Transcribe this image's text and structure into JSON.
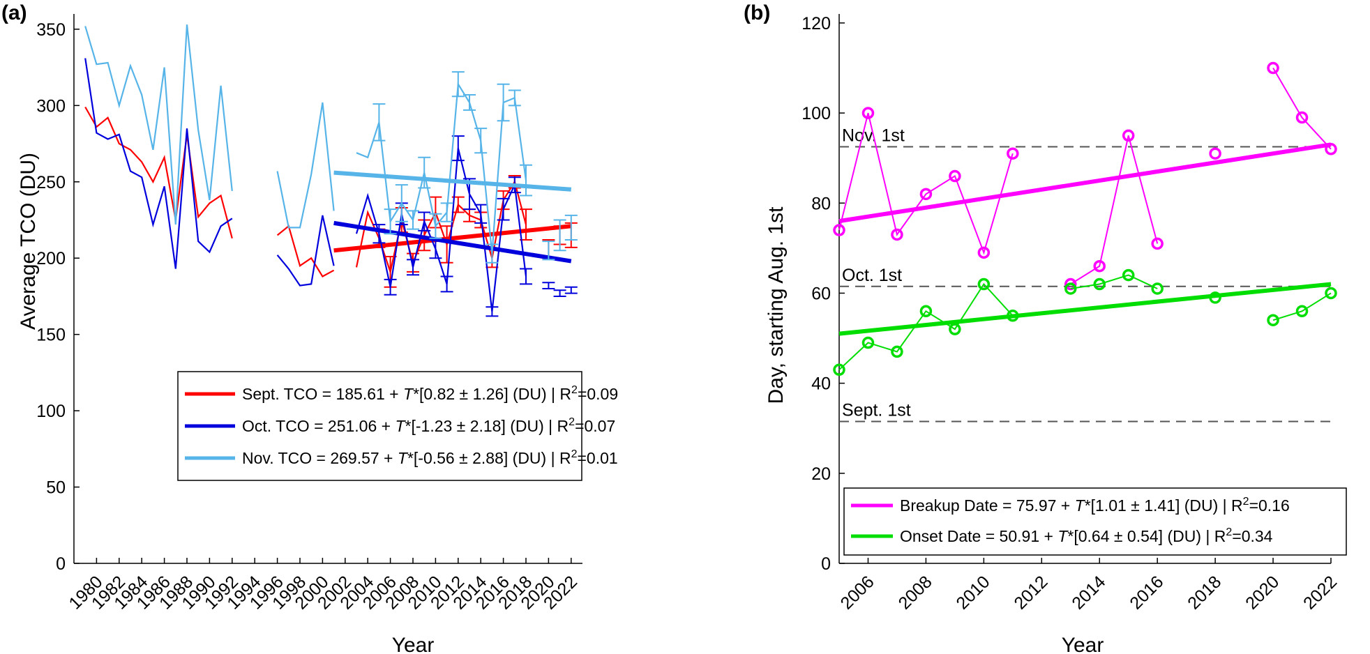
{
  "chart_data": [
    {
      "panel_label": "(a)",
      "type": "line",
      "xlabel": "Year",
      "ylabel": "Average TCO (DU)",
      "xlim": [
        1978,
        2023
      ],
      "ylim": [
        0,
        360
      ],
      "yticks": [
        0,
        50,
        100,
        150,
        200,
        250,
        300,
        350
      ],
      "xticks": [
        1980,
        1982,
        1984,
        1986,
        1988,
        1990,
        1992,
        1994,
        1996,
        1998,
        2000,
        2002,
        2004,
        2006,
        2008,
        2010,
        2012,
        2014,
        2016,
        2018,
        2020,
        2022
      ],
      "colors": {
        "sept": "#ff0000",
        "oct": "#0000dd",
        "nov": "#56b4e9"
      },
      "series": [
        {
          "name": "Sept.",
          "color": "#ff0000",
          "segments": [
            {
              "x": [
                1979,
                1980,
                1981,
                1982,
                1983,
                1984,
                1985,
                1986,
                1987,
                1988,
                1989,
                1990,
                1991,
                1992
              ],
              "y": [
                299,
                286,
                292,
                275,
                271,
                263,
                250,
                266,
                225,
                281,
                227,
                236,
                241,
                213
              ]
            },
            {
              "x": [
                1996,
                1997,
                1998,
                1999,
                2000,
                2001
              ],
              "y": [
                215,
                221,
                195,
                200,
                188,
                192
              ]
            },
            {
              "x": [
                2003,
                2004,
                2005,
                2006,
                2007,
                2008,
                2009,
                2010,
                2011,
                2012,
                2013,
                2014,
                2015,
                2016,
                2017,
                2018
              ],
              "y": [
                194,
                230,
                213,
                191,
                225,
                197,
                215,
                230,
                209,
                235,
                228,
                225,
                200,
                238,
                250,
                222
              ]
            }
          ],
          "errorbars": {
            "x": [
              2005,
              2006,
              2007,
              2008,
              2009,
              2010,
              2011,
              2012,
              2013,
              2014,
              2015,
              2016,
              2017,
              2018,
              2020,
              2021,
              2022
            ],
            "y": [
              213,
              191,
              225,
              197,
              215,
              230,
              209,
              235,
              228,
              225,
              200,
              238,
              250,
              222,
              206,
              215,
              215
            ],
            "err": [
              6,
              10,
              8,
              6,
              10,
              10,
              12,
              5,
              4,
              5,
              6,
              6,
              4,
              10,
              6,
              6,
              8
            ]
          },
          "trend": {
            "x": [
              2001,
              2022
            ],
            "y": [
              205,
              221
            ]
          }
        },
        {
          "name": "Oct.",
          "color": "#0000dd",
          "segments": [
            {
              "x": [
                1979,
                1980,
                1981,
                1982,
                1983,
                1984,
                1985,
                1986,
                1987,
                1988,
                1989,
                1990,
                1991,
                1992
              ],
              "y": [
                331,
                282,
                278,
                281,
                257,
                253,
                222,
                247,
                193,
                285,
                211,
                204,
                221,
                226
              ]
            },
            {
              "x": [
                1996,
                1997,
                1998,
                1999,
                2000,
                2001
              ],
              "y": [
                202,
                193,
                182,
                183,
                228,
                195
              ]
            },
            {
              "x": [
                2003,
                2004,
                2005,
                2006,
                2007,
                2008,
                2009,
                2010,
                2011,
                2012,
                2013,
                2014,
                2015,
                2016,
                2017,
                2018
              ],
              "y": [
                216,
                241,
                216,
                181,
                229,
                194,
                224,
                206,
                183,
                272,
                242,
                229,
                165,
                232,
                248,
                188
              ]
            }
          ],
          "errorbars": {
            "x": [
              2005,
              2006,
              2007,
              2008,
              2009,
              2010,
              2011,
              2012,
              2013,
              2014,
              2015,
              2016,
              2017,
              2018,
              2020,
              2021,
              2022
            ],
            "y": [
              216,
              181,
              229,
              194,
              224,
              206,
              183,
              272,
              242,
              229,
              165,
              232,
              248,
              188,
              182,
              177,
              179
            ],
            "err": [
              6,
              5,
              7,
              5,
              6,
              6,
              5,
              8,
              10,
              6,
              3,
              7,
              5,
              5,
              2,
              2,
              2
            ]
          },
          "trend": {
            "x": [
              2001,
              2022
            ],
            "y": [
              223,
              198
            ]
          }
        },
        {
          "name": "Nov.",
          "color": "#56b4e9",
          "segments": [
            {
              "x": [
                1979,
                1980,
                1981,
                1982,
                1983,
                1984,
                1985,
                1986,
                1987,
                1988,
                1989,
                1990,
                1991,
                1992
              ],
              "y": [
                352,
                327,
                328,
                300,
                326,
                307,
                271,
                325,
                222,
                353,
                284,
                238,
                313,
                244
              ]
            },
            {
              "x": [
                1996,
                1997,
                1998,
                1999,
                2000,
                2001
              ],
              "y": [
                257,
                220,
                220,
                255,
                302,
                231
              ]
            },
            {
              "x": [
                2003,
                2004,
                2005,
                2006,
                2007,
                2008,
                2009,
                2010,
                2011,
                2012,
                2013,
                2014,
                2015,
                2016,
                2017,
                2018
              ],
              "y": [
                269,
                266,
                289,
                224,
                236,
                225,
                256,
                221,
                230,
                314,
                302,
                277,
                203,
                302,
                305,
                251
              ]
            }
          ],
          "errorbars": {
            "x": [
              2005,
              2006,
              2007,
              2008,
              2009,
              2010,
              2011,
              2012,
              2013,
              2014,
              2015,
              2016,
              2017,
              2018,
              2020,
              2021,
              2022
            ],
            "y": [
              289,
              224,
              236,
              225,
              256,
              221,
              230,
              314,
              302,
              277,
              203,
              302,
              305,
              251,
              205,
              215,
              220
            ],
            "err": [
              12,
              8,
              12,
              6,
              10,
              8,
              6,
              8,
              5,
              8,
              6,
              12,
              5,
              10,
              6,
              10,
              8
            ]
          },
          "trend": {
            "x": [
              2001,
              2022
            ],
            "y": [
              256,
              245
            ]
          }
        }
      ],
      "legend": {
        "placement": "lower-right",
        "entries": [
          {
            "color": "#ff0000",
            "pre": "Sept. TCO = 185.61 + ",
            "italic": "T",
            "post": "*[0.82 ± 1.26] (DU) | R",
            "sup": "2",
            "end": "=0.09"
          },
          {
            "color": "#0000dd",
            "pre": "Oct. TCO = 251.06 + ",
            "italic": "T",
            "post": "*[-1.23 ± 2.18] (DU) | R",
            "sup": "2",
            "end": "=0.07"
          },
          {
            "color": "#56b4e9",
            "pre": "Nov. TCO = 269.57 + ",
            "italic": "T",
            "post": "*[-0.56 ± 2.88] (DU) | R",
            "sup": "2",
            "end": "=0.01"
          }
        ]
      }
    },
    {
      "panel_label": "(b)",
      "type": "scatter",
      "xlabel": "Year",
      "ylabel": "Day, starting Aug. 1st",
      "xlim": [
        2005,
        2022
      ],
      "ylim": [
        0,
        122
      ],
      "yticks": [
        0,
        20,
        40,
        60,
        80,
        100,
        120
      ],
      "xticks": [
        2006,
        2008,
        2010,
        2012,
        2014,
        2016,
        2018,
        2020,
        2022
      ],
      "reference_lines": [
        {
          "label": "Nov. 1st",
          "y": 92.5
        },
        {
          "label": "Oct. 1st",
          "y": 61.5
        },
        {
          "label": "Sept. 1st",
          "y": 31.5
        }
      ],
      "series": [
        {
          "name": "Breakup Date",
          "color": "#ff00ff",
          "segments": [
            {
              "x": [
                2005,
                2006,
                2007,
                2008,
                2009,
                2010,
                2011
              ],
              "y": [
                74,
                100,
                73,
                82,
                86,
                69,
                91
              ]
            },
            {
              "x": [
                2013,
                2014,
                2015,
                2016
              ],
              "y": [
                62,
                66,
                95,
                71
              ]
            },
            {
              "x": [
                2018
              ],
              "y": [
                91
              ]
            },
            {
              "x": [
                2020,
                2021,
                2022
              ],
              "y": [
                110,
                99,
                92
              ]
            }
          ],
          "trend": {
            "x": [
              2005,
              2022
            ],
            "y": [
              76,
              93
            ]
          }
        },
        {
          "name": "Onset Date",
          "color": "#00dd00",
          "segments": [
            {
              "x": [
                2005,
                2006,
                2007,
                2008,
                2009,
                2010,
                2011
              ],
              "y": [
                43,
                49,
                47,
                56,
                52,
                62,
                55
              ]
            },
            {
              "x": [
                2013,
                2014,
                2015,
                2016
              ],
              "y": [
                61,
                62,
                64,
                61
              ]
            },
            {
              "x": [
                2018
              ],
              "y": [
                59
              ]
            },
            {
              "x": [
                2020,
                2021,
                2022
              ],
              "y": [
                54,
                56,
                60
              ]
            }
          ],
          "trend": {
            "x": [
              2005,
              2022
            ],
            "y": [
              51,
              62
            ]
          }
        }
      ],
      "legend": {
        "placement": "lower-right",
        "entries": [
          {
            "color": "#ff00ff",
            "pre": "Breakup Date = 75.97 + ",
            "italic": "T",
            "post": "*[1.01 ± 1.41] (DU) | R",
            "sup": "2",
            "end": "=0.16"
          },
          {
            "color": "#00dd00",
            "pre": "Onset Date = 50.91 + ",
            "italic": "T",
            "post": "*[0.64 ± 0.54] (DU) | R",
            "sup": "2",
            "end": "=0.34"
          }
        ]
      }
    }
  ]
}
